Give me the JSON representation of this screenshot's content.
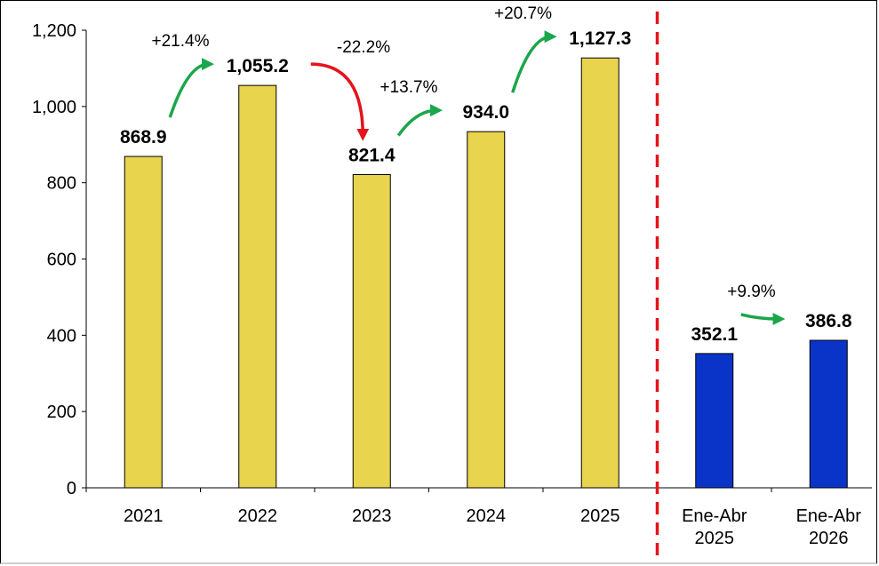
{
  "chart_data": {
    "type": "bar",
    "categories": [
      [
        "2021"
      ],
      [
        "2022"
      ],
      [
        "2023"
      ],
      [
        "2024"
      ],
      [
        "2025"
      ],
      [
        "Ene-Abr",
        "2025"
      ],
      [
        "Ene-Abr",
        "2026"
      ]
    ],
    "values": [
      868.9,
      1055.2,
      821.4,
      934.0,
      1127.3,
      352.1,
      386.8
    ],
    "value_labels": [
      "868.9",
      "1,055.2",
      "821.4",
      "934.0",
      "1,127.3",
      "352.1",
      "386.8"
    ],
    "bar_colors": [
      "#e8d44d",
      "#e8d44d",
      "#e8d44d",
      "#e8d44d",
      "#e8d44d",
      "#0a34c8",
      "#0a34c8"
    ],
    "ylim": [
      0,
      1200
    ],
    "yticks": [
      0,
      200,
      400,
      600,
      800,
      1000,
      1200
    ],
    "ytick_labels": [
      "0",
      "200",
      "400",
      "600",
      "800",
      "1,000",
      "1,200"
    ],
    "changes": [
      {
        "from": 0,
        "to": 1,
        "label": "+21.4%",
        "color": "#1aa64a"
      },
      {
        "from": 1,
        "to": 2,
        "label": "-22.2%",
        "color": "#e3141b"
      },
      {
        "from": 2,
        "to": 3,
        "label": "+13.7%",
        "color": "#1aa64a"
      },
      {
        "from": 3,
        "to": 4,
        "label": "+20.7%",
        "color": "#1aa64a"
      },
      {
        "from": 5,
        "to": 6,
        "label": "+9.9%",
        "color": "#1aa64a"
      }
    ],
    "separator_after_index": 4,
    "separator_color": "#e3141b",
    "grid": false,
    "legend": "none",
    "title": "",
    "xlabel": "",
    "ylabel": ""
  }
}
